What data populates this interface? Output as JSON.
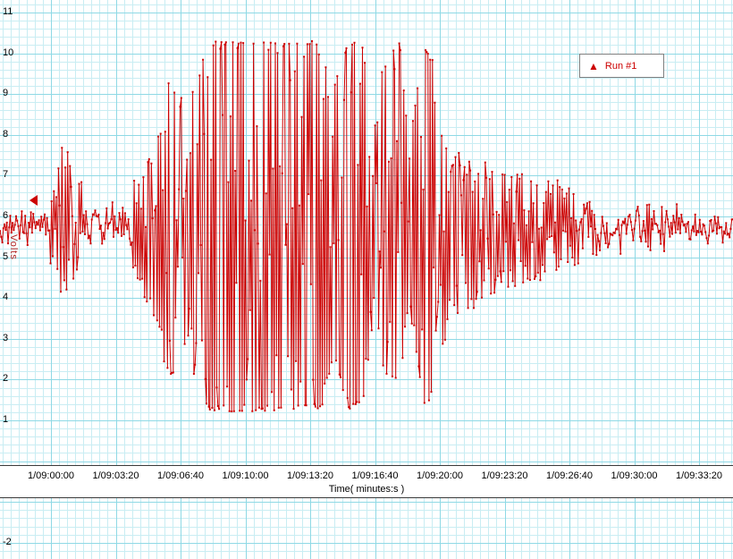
{
  "window": {
    "background": "#ffffff"
  },
  "annotations": {
    "channel_marker_value": 6.4
  },
  "chart_data": {
    "type": "line",
    "title": "",
    "xlabel": "Time( minutes:s )",
    "ylabel": "Volts",
    "x_ticks": [
      "1/09:00:00",
      "1/09:03:20",
      "1/09:06:40",
      "1/09:10:00",
      "1/09:13:20",
      "1/09:16:40",
      "1/09:20:00",
      "1/09:23:20",
      "1/09:26:40",
      "1/09:30:00",
      "1/09:33:20"
    ],
    "y_ticks": [
      11,
      10,
      9,
      8,
      7,
      6,
      5,
      4,
      3,
      2,
      1
    ],
    "y_ticks_lower_pane": [
      -2
    ],
    "ylim_visible": [
      1,
      11
    ],
    "grid": {
      "on": true,
      "minor_color": "#c9edf3",
      "major_color": "#8fd9e5",
      "axis_line_color": "#3a3a3a"
    },
    "legend": {
      "position": "top-right",
      "entries": [
        "Run #1"
      ]
    },
    "series": [
      {
        "name": "Run #1",
        "color": "#cc0000",
        "marker": "point",
        "baseline": 5.7,
        "clip_rails": [
          1.2,
          10.35
        ],
        "envelope": [
          {
            "t": 0.0,
            "lo": 5.15,
            "hi": 6.35
          },
          {
            "t": 0.055,
            "lo": 5.0,
            "hi": 6.5
          },
          {
            "t": 0.075,
            "lo": 4.4,
            "hi": 7.0
          },
          {
            "t": 0.088,
            "lo": 3.6,
            "hi": 8.0
          },
          {
            "t": 0.1,
            "lo": 4.3,
            "hi": 7.3
          },
          {
            "t": 0.12,
            "lo": 4.8,
            "hi": 6.8
          },
          {
            "t": 0.15,
            "lo": 5.0,
            "hi": 6.6
          },
          {
            "t": 0.185,
            "lo": 4.6,
            "hi": 6.9
          },
          {
            "t": 0.21,
            "lo": 3.4,
            "hi": 7.7
          },
          {
            "t": 0.228,
            "lo": 2.0,
            "hi": 9.3
          },
          {
            "t": 0.258,
            "lo": 2.4,
            "hi": 8.8
          },
          {
            "t": 0.285,
            "lo": 1.25,
            "hi": 10.3
          },
          {
            "t": 0.33,
            "lo": 1.2,
            "hi": 10.35
          },
          {
            "t": 0.37,
            "lo": 1.2,
            "hi": 10.35
          },
          {
            "t": 0.405,
            "lo": 1.25,
            "hi": 10.3
          },
          {
            "t": 0.44,
            "lo": 1.3,
            "hi": 10.3
          },
          {
            "t": 0.455,
            "lo": 2.6,
            "hi": 9.2
          },
          {
            "t": 0.475,
            "lo": 1.25,
            "hi": 10.35
          },
          {
            "t": 0.495,
            "lo": 1.4,
            "hi": 10.2
          },
          {
            "t": 0.508,
            "lo": 3.1,
            "hi": 8.2
          },
          {
            "t": 0.528,
            "lo": 2.0,
            "hi": 10.3
          },
          {
            "t": 0.545,
            "lo": 1.9,
            "hi": 10.35
          },
          {
            "t": 0.558,
            "lo": 3.8,
            "hi": 7.7
          },
          {
            "t": 0.578,
            "lo": 1.35,
            "hi": 10.2
          },
          {
            "t": 0.595,
            "lo": 1.6,
            "hi": 9.7
          },
          {
            "t": 0.612,
            "lo": 3.5,
            "hi": 7.6
          },
          {
            "t": 0.645,
            "lo": 3.7,
            "hi": 7.5
          },
          {
            "t": 0.682,
            "lo": 4.1,
            "hi": 7.2
          },
          {
            "t": 0.73,
            "lo": 4.35,
            "hi": 7.0
          },
          {
            "t": 0.79,
            "lo": 4.6,
            "hi": 6.8
          },
          {
            "t": 0.85,
            "lo": 4.85,
            "hi": 6.6
          },
          {
            "t": 0.91,
            "lo": 5.05,
            "hi": 6.4
          },
          {
            "t": 1.0,
            "lo": 5.2,
            "hi": 6.3
          }
        ]
      }
    ]
  }
}
